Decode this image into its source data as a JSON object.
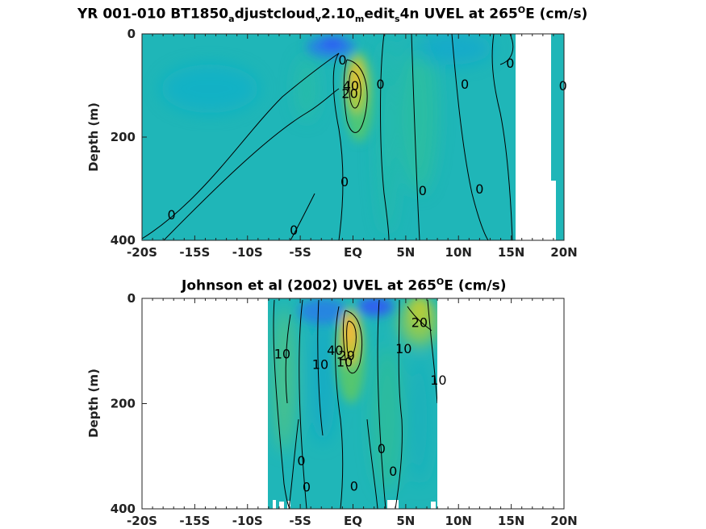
{
  "chart_data": [
    {
      "type": "heatmap",
      "title_parts": {
        "a": "YR 001-010 BT1850",
        "a_sub": "a",
        "b": "djustcloud",
        "b_sub": "v",
        "c": "2.10",
        "c_sub": "m",
        "d": "edit",
        "d_sub": "s",
        "e": "4n UVEL at 265",
        "e_sup": "O",
        "f": "E (cm/s)"
      },
      "ylabel": "Depth (m)",
      "xlim": [
        -20,
        20
      ],
      "ylim": [
        400,
        0
      ],
      "x_ticks": [
        -20,
        -15,
        -10,
        -5,
        0,
        5,
        10,
        15,
        20
      ],
      "x_tick_labels": [
        "-20S",
        "-15S",
        "-10S",
        "-5S",
        "EQ",
        "5N",
        "10N",
        "15N",
        "20N"
      ],
      "y_ticks": [
        0,
        200,
        400
      ],
      "y_tick_labels": [
        "0",
        "200",
        "400"
      ],
      "colormap": "parula",
      "data_extent_lon": [
        -20,
        20
      ],
      "missing_region": "white area north of ~15.5N (land mask)",
      "contour_labels": [
        {
          "text": "0",
          "lon": -1.0,
          "depth": 50
        },
        {
          "text": "40",
          "lon": -0.2,
          "depth": 100
        },
        {
          "text": "20",
          "lon": -0.3,
          "depth": 115
        },
        {
          "text": "0",
          "lon": 2.6,
          "depth": 97
        },
        {
          "text": "0",
          "lon": 10.6,
          "depth": 97
        },
        {
          "text": "0",
          "lon": 14.9,
          "depth": 56
        },
        {
          "text": "0",
          "lon": 19.9,
          "depth": 100
        },
        {
          "text": "0",
          "lon": -17.2,
          "depth": 350
        },
        {
          "text": "0",
          "lon": -5.6,
          "depth": 380
        },
        {
          "text": "0",
          "lon": -0.8,
          "depth": 286
        },
        {
          "text": "0",
          "lon": 6.6,
          "depth": 303
        },
        {
          "text": "0",
          "lon": 12.0,
          "depth": 300
        }
      ],
      "core_max_cm_s": 40
    },
    {
      "type": "heatmap",
      "title_parts": {
        "a": "Johnson et al (2002) UVEL at 265",
        "a_sup": "O",
        "b": "E (cm/s)"
      },
      "ylabel": "Depth (m)",
      "xlim": [
        -20,
        20
      ],
      "ylim": [
        400,
        0
      ],
      "x_ticks": [
        -20,
        -15,
        -10,
        -5,
        0,
        5,
        10,
        15,
        20
      ],
      "x_tick_labels": [
        "-20S",
        "-15S",
        "-10S",
        "-5S",
        "EQ",
        "5N",
        "10N",
        "15N",
        "20N"
      ],
      "y_ticks": [
        0,
        200,
        400
      ],
      "y_tick_labels": [
        "0",
        "200",
        "400"
      ],
      "colormap": "parula",
      "data_extent_lon": [
        -8,
        8
      ],
      "contour_labels": [
        {
          "text": "20",
          "lon": 6.3,
          "depth": 45
        },
        {
          "text": "10",
          "lon": -6.7,
          "depth": 105
        },
        {
          "text": "10",
          "lon": -3.1,
          "depth": 125
        },
        {
          "text": "40",
          "lon": -1.7,
          "depth": 98
        },
        {
          "text": "20",
          "lon": -0.6,
          "depth": 108
        },
        {
          "text": "10",
          "lon": -0.8,
          "depth": 120
        },
        {
          "text": "10",
          "lon": 4.8,
          "depth": 95
        },
        {
          "text": "10",
          "lon": 8.1,
          "depth": 155
        },
        {
          "text": "0",
          "lon": -4.9,
          "depth": 308
        },
        {
          "text": "0",
          "lon": 2.7,
          "depth": 285
        },
        {
          "text": "0",
          "lon": 3.8,
          "depth": 328
        },
        {
          "text": "0",
          "lon": -4.4,
          "depth": 358
        },
        {
          "text": "0",
          "lon": 0.1,
          "depth": 356
        }
      ],
      "core_max_cm_s": 40
    }
  ]
}
